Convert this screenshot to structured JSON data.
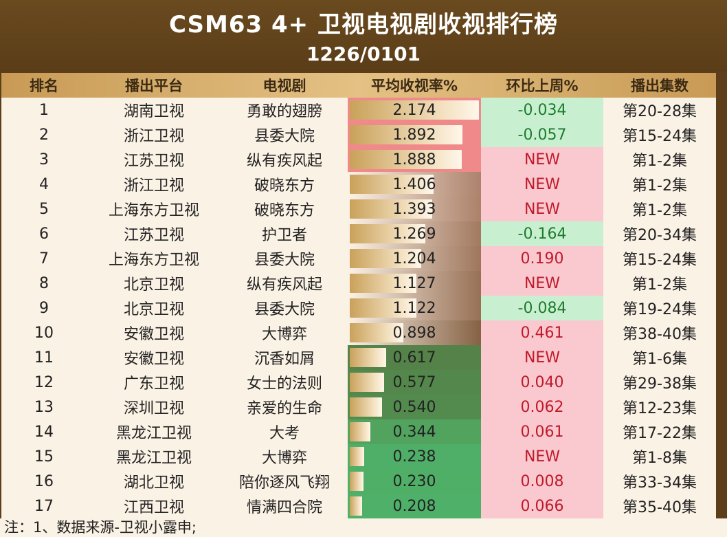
{
  "title": "CSM63 4+ 卫视电视剧收视排行榜",
  "subtitle": "1226/0101",
  "headers": {
    "rank": "排名",
    "platform": "播出平台",
    "show": "电视剧",
    "rating": "平均收视率%",
    "change": "环比上周%",
    "episodes": "播出集数"
  },
  "rows": [
    {
      "rank": "1",
      "platform": "湖南卫视",
      "show": "勇敢的翅膀",
      "rating": "2.174",
      "change": "-0.034",
      "change_type": "green",
      "episodes": "第20-28集"
    },
    {
      "rank": "2",
      "platform": "浙江卫视",
      "show": "县委大院",
      "rating": "1.892",
      "change": "-0.057",
      "change_type": "green",
      "episodes": "第15-24集"
    },
    {
      "rank": "3",
      "platform": "江苏卫视",
      "show": "纵有疾风起",
      "rating": "1.888",
      "change": "NEW",
      "change_type": "red",
      "episodes": "第1-2集"
    },
    {
      "rank": "4",
      "platform": "浙江卫视",
      "show": "破晓东方",
      "rating": "1.406",
      "change": "NEW",
      "change_type": "red",
      "episodes": "第1-2集"
    },
    {
      "rank": "5",
      "platform": "上海东方卫视",
      "show": "破晓东方",
      "rating": "1.393",
      "change": "NEW",
      "change_type": "red",
      "episodes": "第1-2集"
    },
    {
      "rank": "6",
      "platform": "江苏卫视",
      "show": "护卫者",
      "rating": "1.269",
      "change": "-0.164",
      "change_type": "green",
      "episodes": "第20-34集"
    },
    {
      "rank": "7",
      "platform": "上海东方卫视",
      "show": "县委大院",
      "rating": "1.204",
      "change": "0.190",
      "change_type": "red",
      "episodes": "第15-24集"
    },
    {
      "rank": "8",
      "platform": "北京卫视",
      "show": "纵有疾风起",
      "rating": "1.127",
      "change": "NEW",
      "change_type": "red",
      "episodes": "第1-2集"
    },
    {
      "rank": "9",
      "platform": "北京卫视",
      "show": "县委大院",
      "rating": "1.122",
      "change": "-0.084",
      "change_type": "green",
      "episodes": "第19-24集"
    },
    {
      "rank": "10",
      "platform": "安徽卫视",
      "show": "大博弈",
      "rating": "0.898",
      "change": "0.461",
      "change_type": "red",
      "episodes": "第38-40集"
    },
    {
      "rank": "11",
      "platform": "安徽卫视",
      "show": "沉香如屑",
      "rating": "0.617",
      "change": "NEW",
      "change_type": "red",
      "episodes": "第1-6集"
    },
    {
      "rank": "12",
      "platform": "广东卫视",
      "show": "女士的法则",
      "rating": "0.577",
      "change": "0.040",
      "change_type": "red",
      "episodes": "第29-38集"
    },
    {
      "rank": "13",
      "platform": "深圳卫视",
      "show": "亲爱的生命",
      "rating": "0.540",
      "change": "0.062",
      "change_type": "red",
      "episodes": "第12-23集"
    },
    {
      "rank": "14",
      "platform": "黑龙江卫视",
      "show": "大考",
      "rating": "0.344",
      "change": "0.061",
      "change_type": "red",
      "episodes": "第17-22集"
    },
    {
      "rank": "15",
      "platform": "黑龙江卫视",
      "show": "大博弈",
      "rating": "0.238",
      "change": "NEW",
      "change_type": "red",
      "episodes": "第1-8集"
    },
    {
      "rank": "16",
      "platform": "湖北卫视",
      "show": "陪你逐风飞翔",
      "rating": "0.230",
      "change": "0.008",
      "change_type": "red",
      "episodes": "第33-34集"
    },
    {
      "rank": "17",
      "platform": "江西卫视",
      "show": "情满四合院",
      "rating": "0.208",
      "change": "0.066",
      "change_type": "red",
      "episodes": "第35-40集"
    }
  ],
  "footnote": "注：1、数据来源-卫视小露申;",
  "colors": {
    "rating_high_bg": "#f08a8a",
    "rating_mid_bg": "#fbf2e6",
    "rating_low_bg": "#4fb36a",
    "change_positive_bg": "#f9c9cf",
    "change_negative_bg": "#c8f0d0"
  }
}
